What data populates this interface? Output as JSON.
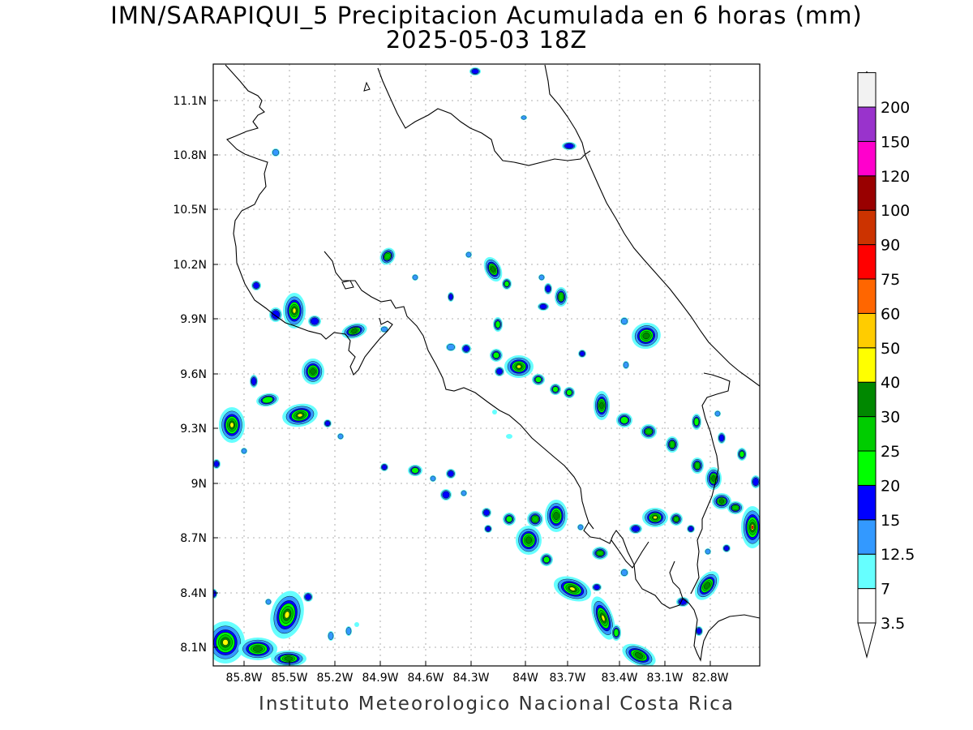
{
  "title_line1": "IMN/SARAPIQUI_5 Precipitacion Acumulada en 6 horas (mm)",
  "title_line2": "2025-05-03 18Z",
  "footer": "Instituto Meteorologico Nacional Costa Rica",
  "map": {
    "lat_ticks": [
      "11.1N",
      "10.8N",
      "10.5N",
      "10.2N",
      "9.9N",
      "9.6N",
      "9.3N",
      "9N",
      "8.7N",
      "8.4N",
      "8.1N"
    ],
    "lon_ticks": [
      "85.8W",
      "85.5W",
      "85.2W",
      "84.9W",
      "84.6W",
      "84.3W",
      "84W",
      "83.7W",
      "83.4W",
      "83.1W",
      "82.8W"
    ]
  },
  "colorbar": {
    "labels": [
      "3.5",
      "7",
      "12.5",
      "15",
      "20",
      "25",
      "30",
      "40",
      "50",
      "60",
      "75",
      "90",
      "100",
      "120",
      "150",
      "200"
    ],
    "colors": [
      "#ffffff",
      "#66ffff",
      "#3399ff",
      "#0000ff",
      "#00ff00",
      "#00cc00",
      "#008800",
      "#ffff00",
      "#ffcc00",
      "#ff6600",
      "#ff0000",
      "#cc3300",
      "#990000",
      "#ff00cc",
      "#9933cc",
      "#f2f2f2"
    ],
    "over_color": "#a6a6a6"
  },
  "legend_colors": {
    "c1": "#66ffff",
    "c2": "#3399ff",
    "c3": "#0000ff",
    "c4": "#00ff00",
    "c5": "#00cc00",
    "c6": "#008800",
    "c7": "#ffff00",
    "c8": "#ff0000"
  }
}
